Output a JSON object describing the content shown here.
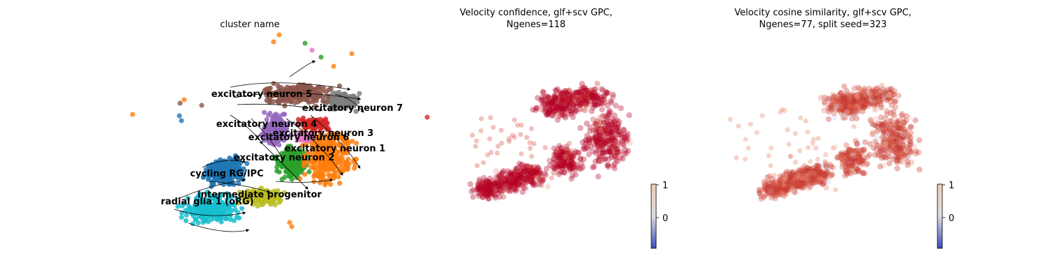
{
  "chart_data": [
    {
      "type": "scatter",
      "title": "cluster name",
      "legend": "on data",
      "series": [
        {
          "name": "radial glia 1 (oRG)",
          "color": "#17becf"
        },
        {
          "name": "cycling RG/IPC",
          "color": "#1f77b4"
        },
        {
          "name": "intermediate progenitor",
          "color": "#bcbd22"
        },
        {
          "name": "excitatory neuron 2",
          "color": "#2ca02c"
        },
        {
          "name": "excitatory neuron 1",
          "color": "#ff7f0e"
        },
        {
          "name": "excitatory neuron 6",
          "color": "#e377c2"
        },
        {
          "name": "excitatory neuron 3",
          "color": "#d62728"
        },
        {
          "name": "excitatory neuron 4",
          "color": "#9467bd"
        },
        {
          "name": "excitatory neuron 7",
          "color": "#7f7f7f"
        },
        {
          "name": "excitatory neuron 5",
          "color": "#8c564b"
        }
      ],
      "overlay": "velocity streamlines",
      "axes": "off"
    },
    {
      "type": "scatter",
      "title": "Velocity confidence, glf+scv GPC,\nNgenes=118",
      "colormap": "coolwarm",
      "colorbar_ticks": [
        "1",
        "0"
      ],
      "axes": "off"
    },
    {
      "type": "scatter",
      "title": "Velocity cosine similarity, glf+scv GPC,\nNgenes=77, split seed=323",
      "colormap": "coolwarm",
      "colorbar_ticks": [
        "1",
        "0"
      ],
      "axes": "off"
    }
  ],
  "colors": {
    "high": "#b40426",
    "mid": "#dddddd",
    "low": "#3b4cc0"
  }
}
